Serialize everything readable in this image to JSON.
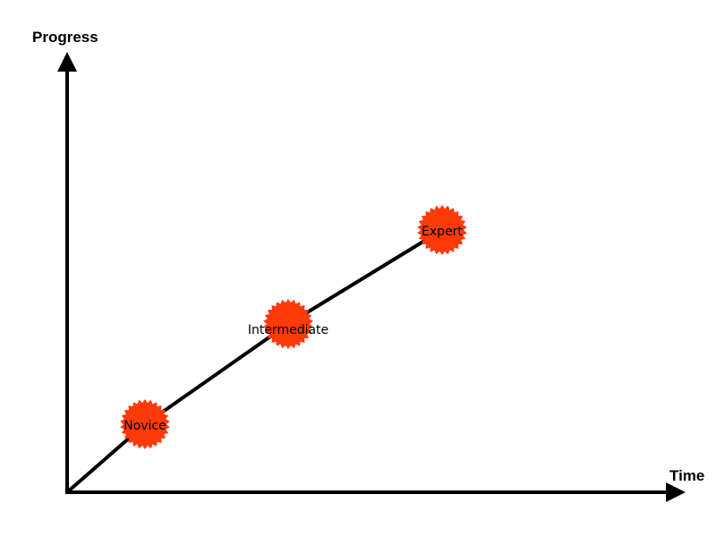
{
  "axes": {
    "y_title": "Progress",
    "x_title": "Time"
  },
  "milestones": [
    {
      "label": "Novice"
    },
    {
      "label": "Intermediate"
    },
    {
      "label": "Expert"
    }
  ],
  "colors": {
    "burst": "#ff3a0a",
    "line": "#000000"
  }
}
